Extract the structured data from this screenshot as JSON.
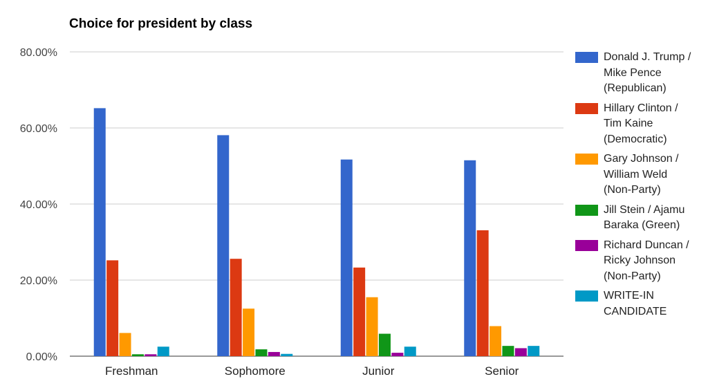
{
  "chart_data": {
    "type": "bar",
    "title": "Choice for president by class",
    "xlabel": "",
    "ylabel": "",
    "ylim": [
      0,
      80
    ],
    "yticks": [
      "0.00%",
      "20.00%",
      "40.00%",
      "60.00%",
      "80.00%"
    ],
    "grid": true,
    "legend_position": "right",
    "categories": [
      "Freshman",
      "Sophomore",
      "Junior",
      "Senior"
    ],
    "series": [
      {
        "name": "Donald J. Trump / Mike Pence (Republican)",
        "color": "#3366cc",
        "values": [
          65.2,
          58.1,
          51.7,
          51.5
        ]
      },
      {
        "name": "Hillary Clinton / Tim Kaine (Democratic)",
        "color": "#dc3912",
        "values": [
          25.2,
          25.6,
          23.3,
          33.1
        ]
      },
      {
        "name": "Gary Johnson / William Weld (Non-Party)",
        "color": "#ff9900",
        "values": [
          6.1,
          12.5,
          15.5,
          7.9
        ]
      },
      {
        "name": "Jill Stein / Ajamu Baraka (Green)",
        "color": "#109618",
        "values": [
          0.5,
          1.8,
          5.9,
          2.7
        ]
      },
      {
        "name": "Richard Duncan / Ricky Johnson (Non-Party)",
        "color": "#990099",
        "values": [
          0.5,
          1.1,
          0.9,
          2.1
        ]
      },
      {
        "name": "WRITE-IN CANDIDATE",
        "color": "#0099c6",
        "values": [
          2.5,
          0.6,
          2.5,
          2.7
        ]
      }
    ]
  },
  "legend_lines": [
    "Donald J. Trump /\nMike Pence\n(Republican)",
    "Hillary Clinton /\nTim Kaine\n(Democratic)",
    "Gary Johnson /\nWilliam Weld\n(Non-Party)",
    "Jill Stein / Ajamu\nBaraka (Green)",
    "Richard Duncan /\nRicky Johnson\n(Non-Party)",
    "WRITE-IN\nCANDIDATE"
  ]
}
